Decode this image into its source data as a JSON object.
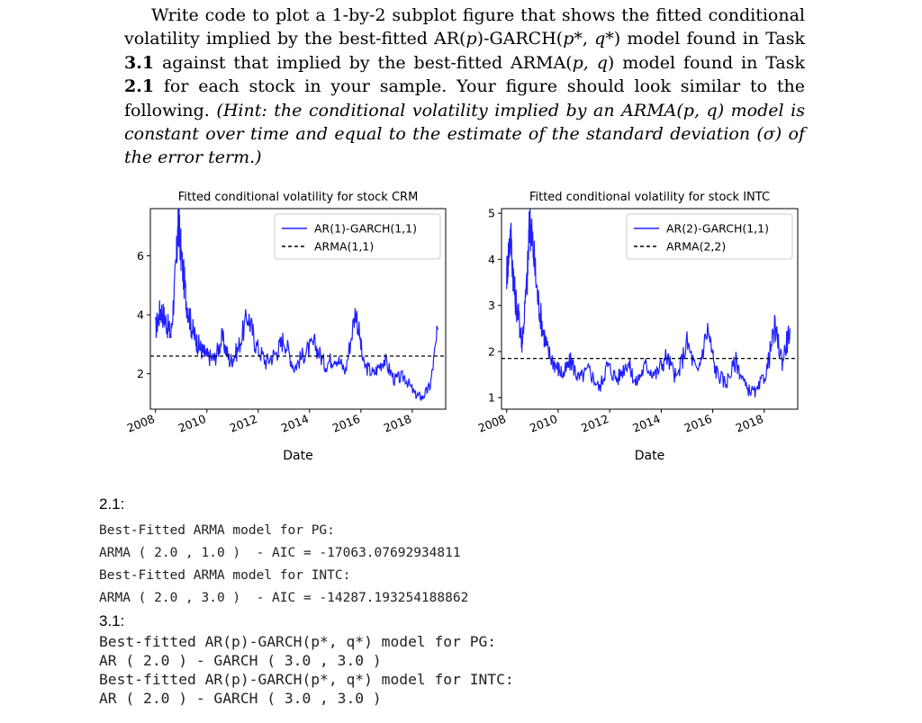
{
  "task": {
    "p1": "Write code to plot a 1-by-2 subplot figure that shows the fitted conditional volatility implied by the best-fitted AR(",
    "p": "p",
    "p2": ")-GARCH(",
    "pstar": "p*",
    "comma": ", ",
    "qstar": "q*",
    "p3": ") model found in Task ",
    "task1": "3.1",
    "p4": " against that implied by the best-fitted ARMA(",
    "pq": "p, q",
    "p5": ") model found in Task ",
    "task2": "2.1",
    "p6": " for each stock in your sample. Your figure should look similar to the following. ",
    "hint": "(Hint: the conditional volatility implied by an ARMA(p, q) model is constant over time and equal to the estimate of the standard deviation (σ) of the error term.)"
  },
  "chart_data": [
    {
      "type": "line",
      "title": "Fitted conditional volatility for stock CRM",
      "xlabel": "Date",
      "ylabel": "",
      "x_ticks": [
        "2008",
        "2010",
        "2012",
        "2014",
        "2016",
        "2018"
      ],
      "y_ticks": [
        2,
        4,
        6
      ],
      "xlim": [
        2007.8,
        2019.3
      ],
      "ylim": [
        0.8,
        7.6
      ],
      "legend_position": "top-right",
      "series": [
        {
          "name": "AR(1)-GARCH(1,1)",
          "style": "solid",
          "color": "#1f1fff",
          "x": [
            2008.0,
            2008.2,
            2008.4,
            2008.6,
            2008.8,
            2008.9,
            2009.0,
            2009.2,
            2009.4,
            2009.6,
            2009.8,
            2010.0,
            2010.3,
            2010.6,
            2010.9,
            2011.2,
            2011.6,
            2011.9,
            2012.3,
            2012.7,
            2013.0,
            2013.4,
            2013.8,
            2014.2,
            2014.6,
            2015.0,
            2015.4,
            2015.8,
            2016.1,
            2016.5,
            2016.9,
            2017.3,
            2017.7,
            2018.1,
            2018.4,
            2018.7,
            2019.0
          ],
          "y": [
            3.5,
            4.2,
            3.8,
            3.3,
            5.6,
            7.3,
            6.0,
            4.5,
            3.6,
            3.1,
            2.8,
            2.6,
            2.5,
            3.2,
            2.4,
            2.8,
            4.0,
            3.0,
            2.4,
            2.7,
            3.2,
            2.2,
            2.7,
            3.0,
            2.3,
            2.6,
            2.1,
            4.2,
            2.3,
            2.0,
            2.5,
            1.8,
            1.9,
            1.3,
            1.2,
            1.6,
            3.5
          ]
        },
        {
          "name": "ARMA(1,1)",
          "style": "dashed",
          "color": "#000000",
          "x": [
            2007.8,
            2019.3
          ],
          "y": [
            2.6,
            2.6
          ]
        }
      ]
    },
    {
      "type": "line",
      "title": "Fitted conditional volatility for stock INTC",
      "xlabel": "Date",
      "ylabel": "",
      "x_ticks": [
        "2008",
        "2010",
        "2012",
        "2014",
        "2016",
        "2018"
      ],
      "y_ticks": [
        1,
        2,
        3,
        4,
        5
      ],
      "xlim": [
        2007.8,
        2019.3
      ],
      "ylim": [
        0.75,
        5.1
      ],
      "legend_position": "top-right",
      "series": [
        {
          "name": "AR(2)-GARCH(1,1)",
          "style": "solid",
          "color": "#1f1fff",
          "x": [
            2008.0,
            2008.15,
            2008.3,
            2008.5,
            2008.6,
            2008.8,
            2008.9,
            2009.0,
            2009.2,
            2009.4,
            2009.6,
            2009.9,
            2010.2,
            2010.5,
            2010.8,
            2011.2,
            2011.6,
            2011.9,
            2012.3,
            2012.7,
            2013.0,
            2013.4,
            2013.8,
            2014.2,
            2014.6,
            2015.0,
            2015.4,
            2015.8,
            2016.1,
            2016.5,
            2016.9,
            2017.3,
            2017.7,
            2018.1,
            2018.4,
            2018.7,
            2019.0
          ],
          "y": [
            3.7,
            4.6,
            3.3,
            2.6,
            2.2,
            3.6,
            4.9,
            4.4,
            3.2,
            2.5,
            2.0,
            1.7,
            1.5,
            1.8,
            1.4,
            1.6,
            1.2,
            1.7,
            1.4,
            1.8,
            1.3,
            1.7,
            1.5,
            1.9,
            1.4,
            2.2,
            1.5,
            2.5,
            1.6,
            1.3,
            1.8,
            1.2,
            1.1,
            1.6,
            2.5,
            1.8,
            2.5
          ]
        },
        {
          "name": "ARMA(2,2)",
          "style": "dashed",
          "color": "#000000",
          "x": [
            2007.8,
            2019.3
          ],
          "y": [
            1.85,
            1.85
          ]
        }
      ]
    }
  ],
  "section21": {
    "heading": "2.1:",
    "lines": [
      "Best-Fitted ARMA model for PG:",
      "ARMA ( 2.0 , 1.0 )  - AIC = -17063.07692934811",
      "Best-Fitted ARMA model for INTC:",
      "ARMA ( 2.0 , 3.0 )  - AIC = -14287.193254188862"
    ]
  },
  "section31": {
    "heading": "3.1:",
    "lines": [
      "Best-fitted AR(p)-GARCH(p*, q*) model for PG:",
      "AR ( 2.0 ) - GARCH ( 3.0 , 3.0 )",
      "Best-fitted AR(p)-GARCH(p*, q*) model for INTC:",
      "AR ( 2.0 ) - GARCH ( 3.0 , 3.0 )"
    ]
  }
}
